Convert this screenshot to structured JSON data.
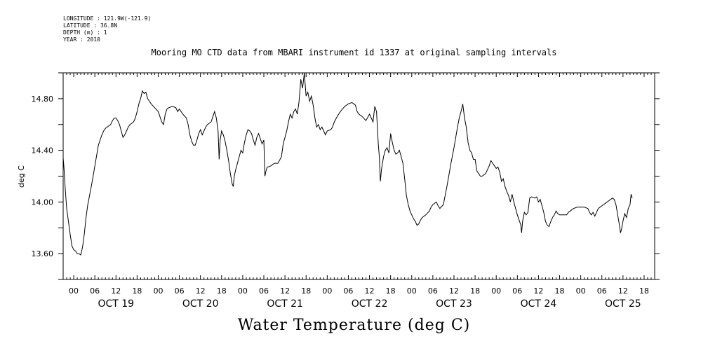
{
  "meta": {
    "longitude": "LONGITUDE : 121.9W(-121.9)",
    "latitude": "LATITUDE : 36.8N",
    "depth": "DEPTH (m) : 1",
    "year": "YEAR : 2010"
  },
  "chart_data": {
    "type": "line",
    "title": "Mooring MO CTD data from MBARI instrument id 1337 at original sampling intervals",
    "xlabel": "Water Temperature (deg C)",
    "ylabel": "deg C",
    "ylim": [
      13.4,
      15.0
    ],
    "yticks": [
      "13.60",
      "14.00",
      "14.40",
      "14.80"
    ],
    "xlim_hours": [
      -3,
      165
    ],
    "hour_ticks": [
      "00",
      "06",
      "12",
      "18",
      "00",
      "06",
      "12",
      "18",
      "00",
      "06",
      "12",
      "18",
      "00",
      "06",
      "12",
      "18",
      "00",
      "06",
      "12",
      "18",
      "00",
      "06",
      "12",
      "18",
      "00",
      "06",
      "12",
      "18"
    ],
    "day_labels": [
      "OCT 19",
      "OCT 20",
      "OCT 21",
      "OCT 22",
      "OCT 23",
      "OCT 24",
      "OCT 25"
    ],
    "grid": false,
    "series": [
      {
        "points": [
          [
            -3.7,
            14.32
          ],
          [
            -3.2,
            14.34
          ],
          [
            -2.8,
            14.28
          ],
          [
            -2.4,
            14.1
          ],
          [
            -2.0,
            13.95
          ],
          [
            -1.5,
            13.85
          ],
          [
            -1.0,
            13.75
          ],
          [
            -0.5,
            13.66
          ],
          [
            0.0,
            13.63
          ],
          [
            0.5,
            13.62
          ],
          [
            1.0,
            13.6
          ],
          [
            1.5,
            13.6
          ],
          [
            2.0,
            13.59
          ],
          [
            2.5,
            13.65
          ],
          [
            3.0,
            13.75
          ],
          [
            3.5,
            13.88
          ],
          [
            4.0,
            13.98
          ],
          [
            4.5,
            14.05
          ],
          [
            5.0,
            14.12
          ],
          [
            5.5,
            14.2
          ],
          [
            6.0,
            14.28
          ],
          [
            6.5,
            14.36
          ],
          [
            7.0,
            14.44
          ],
          [
            7.5,
            14.48
          ],
          [
            8.0,
            14.52
          ],
          [
            8.5,
            14.55
          ],
          [
            9.0,
            14.57
          ],
          [
            10.0,
            14.59
          ],
          [
            10.5,
            14.6
          ],
          [
            11.0,
            14.63
          ],
          [
            11.5,
            14.65
          ],
          [
            12.0,
            14.65
          ],
          [
            12.5,
            14.63
          ],
          [
            13.0,
            14.6
          ],
          [
            13.5,
            14.55
          ],
          [
            14.0,
            14.5
          ],
          [
            14.5,
            14.52
          ],
          [
            15.0,
            14.55
          ],
          [
            15.5,
            14.58
          ],
          [
            16.0,
            14.6
          ],
          [
            17.0,
            14.62
          ],
          [
            17.5,
            14.65
          ],
          [
            18.0,
            14.7
          ],
          [
            18.5,
            14.76
          ],
          [
            19.0,
            14.8
          ],
          [
            19.5,
            14.86
          ],
          [
            20.0,
            14.84
          ],
          [
            20.5,
            14.85
          ],
          [
            21.0,
            14.8
          ],
          [
            21.5,
            14.78
          ],
          [
            22.0,
            14.76
          ],
          [
            23.0,
            14.73
          ],
          [
            24.0,
            14.7
          ],
          [
            24.5,
            14.66
          ],
          [
            25.0,
            14.62
          ],
          [
            25.5,
            14.6
          ],
          [
            26.0,
            14.68
          ],
          [
            26.5,
            14.72
          ],
          [
            27.0,
            14.73
          ],
          [
            28.0,
            14.74
          ],
          [
            29.0,
            14.73
          ],
          [
            29.5,
            14.7
          ],
          [
            30.0,
            14.72
          ],
          [
            30.5,
            14.7
          ],
          [
            31.0,
            14.68
          ],
          [
            32.0,
            14.65
          ],
          [
            32.5,
            14.6
          ],
          [
            33.0,
            14.52
          ],
          [
            33.5,
            14.47
          ],
          [
            34.0,
            14.44
          ],
          [
            34.5,
            14.44
          ],
          [
            35.0,
            14.48
          ],
          [
            35.5,
            14.53
          ],
          [
            36.0,
            14.56
          ],
          [
            36.5,
            14.52
          ],
          [
            37.0,
            14.55
          ],
          [
            37.5,
            14.58
          ],
          [
            38.0,
            14.6
          ],
          [
            39.0,
            14.62
          ],
          [
            39.5,
            14.66
          ],
          [
            40.0,
            14.7
          ],
          [
            40.5,
            14.65
          ],
          [
            41.0,
            14.55
          ],
          [
            41.3,
            14.33
          ],
          [
            41.6,
            14.48
          ],
          [
            42.0,
            14.55
          ],
          [
            42.5,
            14.52
          ],
          [
            43.0,
            14.47
          ],
          [
            43.5,
            14.4
          ],
          [
            44.0,
            14.32
          ],
          [
            44.5,
            14.22
          ],
          [
            45.0,
            14.14
          ],
          [
            45.3,
            14.12
          ],
          [
            45.6,
            14.2
          ],
          [
            46.0,
            14.25
          ],
          [
            46.5,
            14.3
          ],
          [
            47.0,
            14.35
          ],
          [
            47.5,
            14.4
          ],
          [
            48.0,
            14.38
          ],
          [
            48.5,
            14.46
          ],
          [
            49.0,
            14.52
          ],
          [
            49.5,
            14.56
          ],
          [
            50.0,
            14.55
          ],
          [
            50.5,
            14.53
          ],
          [
            51.0,
            14.48
          ],
          [
            51.5,
            14.44
          ],
          [
            52.0,
            14.5
          ],
          [
            52.5,
            14.53
          ],
          [
            53.0,
            14.49
          ],
          [
            53.5,
            14.45
          ],
          [
            54.0,
            14.48
          ],
          [
            54.3,
            14.2
          ],
          [
            54.7,
            14.25
          ],
          [
            55.0,
            14.27
          ],
          [
            56.0,
            14.28
          ],
          [
            57.0,
            14.3
          ],
          [
            58.0,
            14.3
          ],
          [
            59.0,
            14.35
          ],
          [
            59.5,
            14.45
          ],
          [
            60.0,
            14.5
          ],
          [
            60.5,
            14.55
          ],
          [
            61.0,
            14.62
          ],
          [
            61.5,
            14.68
          ],
          [
            62.0,
            14.65
          ],
          [
            62.5,
            14.7
          ],
          [
            63.0,
            14.72
          ],
          [
            63.5,
            14.68
          ],
          [
            64.0,
            14.78
          ],
          [
            64.5,
            14.95
          ],
          [
            65.0,
            14.88
          ],
          [
            65.5,
            15.03
          ],
          [
            66.0,
            14.82
          ],
          [
            66.5,
            14.85
          ],
          [
            67.0,
            14.78
          ],
          [
            67.5,
            14.82
          ],
          [
            68.0,
            14.75
          ],
          [
            68.5,
            14.65
          ],
          [
            69.0,
            14.58
          ],
          [
            69.5,
            14.6
          ],
          [
            70.0,
            14.56
          ],
          [
            70.5,
            14.58
          ],
          [
            71.0,
            14.55
          ],
          [
            71.5,
            14.52
          ],
          [
            72.0,
            14.55
          ],
          [
            73.0,
            14.56
          ],
          [
            73.5,
            14.58
          ],
          [
            74.0,
            14.62
          ],
          [
            75.0,
            14.67
          ],
          [
            76.0,
            14.71
          ],
          [
            77.0,
            14.74
          ],
          [
            78.0,
            14.76
          ],
          [
            79.0,
            14.77
          ],
          [
            80.0,
            14.75
          ],
          [
            80.5,
            14.7
          ],
          [
            81.0,
            14.68
          ],
          [
            82.0,
            14.66
          ],
          [
            83.0,
            14.63
          ],
          [
            84.0,
            14.68
          ],
          [
            84.5,
            14.65
          ],
          [
            85.0,
            14.62
          ],
          [
            85.5,
            14.74
          ],
          [
            86.0,
            14.7
          ],
          [
            86.5,
            14.45
          ],
          [
            86.8,
            14.35
          ],
          [
            87.1,
            14.16
          ],
          [
            87.4,
            14.25
          ],
          [
            87.7,
            14.3
          ],
          [
            88.0,
            14.35
          ],
          [
            88.5,
            14.4
          ],
          [
            89.0,
            14.42
          ],
          [
            89.5,
            14.38
          ],
          [
            90.0,
            14.53
          ],
          [
            90.5,
            14.46
          ],
          [
            91.0,
            14.4
          ],
          [
            91.5,
            14.37
          ],
          [
            92.0,
            14.38
          ],
          [
            92.5,
            14.4
          ],
          [
            93.0,
            14.35
          ],
          [
            93.5,
            14.3
          ],
          [
            94.0,
            14.18
          ],
          [
            94.5,
            14.05
          ],
          [
            95.0,
            13.98
          ],
          [
            95.5,
            13.93
          ],
          [
            96.0,
            13.9
          ],
          [
            96.5,
            13.87
          ],
          [
            97.0,
            13.85
          ],
          [
            97.5,
            13.82
          ],
          [
            98.0,
            13.83
          ],
          [
            98.5,
            13.86
          ],
          [
            99.0,
            13.88
          ],
          [
            100.0,
            13.9
          ],
          [
            101.0,
            13.93
          ],
          [
            101.5,
            13.96
          ],
          [
            102.0,
            13.98
          ],
          [
            103.0,
            14.0
          ],
          [
            103.5,
            13.97
          ],
          [
            104.0,
            13.95
          ],
          [
            105.0,
            13.98
          ],
          [
            105.5,
            14.05
          ],
          [
            106.0,
            14.12
          ],
          [
            106.5,
            14.2
          ],
          [
            107.0,
            14.28
          ],
          [
            107.5,
            14.35
          ],
          [
            108.0,
            14.42
          ],
          [
            108.5,
            14.5
          ],
          [
            109.0,
            14.58
          ],
          [
            109.5,
            14.65
          ],
          [
            110.0,
            14.7
          ],
          [
            110.5,
            14.76
          ],
          [
            111.0,
            14.65
          ],
          [
            111.5,
            14.58
          ],
          [
            112.0,
            14.46
          ],
          [
            112.5,
            14.4
          ],
          [
            113.0,
            14.38
          ],
          [
            113.5,
            14.33
          ],
          [
            114.0,
            14.33
          ],
          [
            114.5,
            14.24
          ],
          [
            115.0,
            14.22
          ],
          [
            115.5,
            14.2
          ],
          [
            116.0,
            14.2
          ],
          [
            117.0,
            14.22
          ],
          [
            118.0,
            14.28
          ],
          [
            118.5,
            14.32
          ],
          [
            119.0,
            14.3
          ],
          [
            119.5,
            14.28
          ],
          [
            120.0,
            14.26
          ],
          [
            120.5,
            14.27
          ],
          [
            121.0,
            14.23
          ],
          [
            121.5,
            14.16
          ],
          [
            122.0,
            14.18
          ],
          [
            122.5,
            14.12
          ],
          [
            123.0,
            14.08
          ],
          [
            123.5,
            14.05
          ],
          [
            124.0,
            14.0
          ],
          [
            124.5,
            14.06
          ],
          [
            125.0,
            14.0
          ],
          [
            125.5,
            13.95
          ],
          [
            126.0,
            13.9
          ],
          [
            126.5,
            13.86
          ],
          [
            127.0,
            13.82
          ],
          [
            127.2,
            13.76
          ],
          [
            127.5,
            13.85
          ],
          [
            128.0,
            13.92
          ],
          [
            128.5,
            13.9
          ],
          [
            129.0,
            13.92
          ],
          [
            129.5,
            14.03
          ],
          [
            130.0,
            14.04
          ],
          [
            131.0,
            14.03
          ],
          [
            131.5,
            14.04
          ],
          [
            132.0,
            14.0
          ],
          [
            132.5,
            14.02
          ],
          [
            133.0,
            13.97
          ],
          [
            133.5,
            13.92
          ],
          [
            134.0,
            13.85
          ],
          [
            134.5,
            13.82
          ],
          [
            135.0,
            13.81
          ],
          [
            135.5,
            13.85
          ],
          [
            136.0,
            13.88
          ],
          [
            136.5,
            13.9
          ],
          [
            137.0,
            13.93
          ],
          [
            137.5,
            13.91
          ],
          [
            138.0,
            13.9
          ],
          [
            139.0,
            13.9
          ],
          [
            140.0,
            13.9
          ],
          [
            140.5,
            13.92
          ],
          [
            141.0,
            13.93
          ],
          [
            142.0,
            13.95
          ],
          [
            143.0,
            13.96
          ],
          [
            144.0,
            13.96
          ],
          [
            145.0,
            13.96
          ],
          [
            146.0,
            13.95
          ],
          [
            146.5,
            13.92
          ],
          [
            147.0,
            13.9
          ],
          [
            147.5,
            13.92
          ],
          [
            148.0,
            13.89
          ],
          [
            148.5,
            13.92
          ],
          [
            149.0,
            13.95
          ],
          [
            150.0,
            13.97
          ],
          [
            151.0,
            13.99
          ],
          [
            152.0,
            14.01
          ],
          [
            153.0,
            14.03
          ],
          [
            153.5,
            14.02
          ],
          [
            154.0,
            13.98
          ],
          [
            154.5,
            13.9
          ],
          [
            155.0,
            13.82
          ],
          [
            155.3,
            13.76
          ],
          [
            155.6,
            13.79
          ],
          [
            156.0,
            13.85
          ],
          [
            156.5,
            13.91
          ],
          [
            157.0,
            13.88
          ],
          [
            157.5,
            13.95
          ],
          [
            158.0,
            13.98
          ],
          [
            158.3,
            14.06
          ],
          [
            158.6,
            14.03
          ]
        ]
      }
    ]
  }
}
